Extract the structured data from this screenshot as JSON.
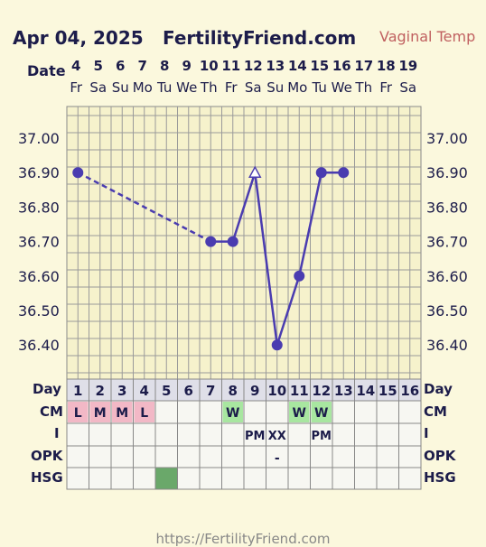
{
  "header": {
    "date": "Apr 04, 2025",
    "site": "FertilityFriend.com",
    "temp_type": "Vaginal Temp"
  },
  "footer": {
    "url": "https://FertilityFriend.com"
  },
  "row_labels": {
    "date": "Date",
    "day": "Day",
    "cm": "CM",
    "i": "I",
    "opk": "OPK",
    "hsg": "HSG"
  },
  "chart_data": {
    "type": "line",
    "dates": [
      "4",
      "5",
      "6",
      "7",
      "8",
      "9",
      "10",
      "11",
      "12",
      "13",
      "14",
      "15",
      "16",
      "17",
      "18",
      "19"
    ],
    "weekdays": [
      "Fr",
      "Sa",
      "Su",
      "Mo",
      "Tu",
      "We",
      "Th",
      "Fr",
      "Sa",
      "Su",
      "Mo",
      "Tu",
      "We",
      "Th",
      "Fr",
      "Sa"
    ],
    "cycle_days": [
      "1",
      "2",
      "3",
      "4",
      "5",
      "6",
      "7",
      "8",
      "9",
      "10",
      "11",
      "12",
      "13",
      "14",
      "15",
      "16"
    ],
    "y_ticks": [
      "37.00",
      "36.90",
      "36.80",
      "36.70",
      "36.60",
      "36.50",
      "36.40"
    ],
    "ylim": [
      36.3,
      37.1
    ],
    "temps": [
      36.9,
      null,
      null,
      null,
      null,
      null,
      36.7,
      36.7,
      36.9,
      36.4,
      36.6,
      36.9,
      36.9,
      null,
      null,
      null
    ],
    "open_marker_days": [
      9
    ],
    "dashed_segments": [
      [
        1,
        7
      ]
    ],
    "cm": [
      "L",
      "M",
      "M",
      "L",
      "",
      "",
      "",
      "W",
      "",
      "",
      "W",
      "W",
      "",
      "",
      "",
      ""
    ],
    "cm_colors": {
      "L": "#f2b8c6",
      "M": "#f2b8c6",
      "W": "#a8e6a0"
    },
    "intercourse": [
      "",
      "",
      "",
      "",
      "",
      "",
      "",
      "",
      "PM",
      "XX",
      "",
      "PM",
      "",
      "",
      "",
      ""
    ],
    "opk": [
      "",
      "",
      "",
      "",
      "",
      "",
      "",
      "",
      "",
      "-",
      "",
      "",
      "",
      "",
      "",
      ""
    ],
    "hsg_marked_days": [
      5
    ],
    "hsg_color": "#6aa86a",
    "line_color": "#4a3cb0"
  }
}
